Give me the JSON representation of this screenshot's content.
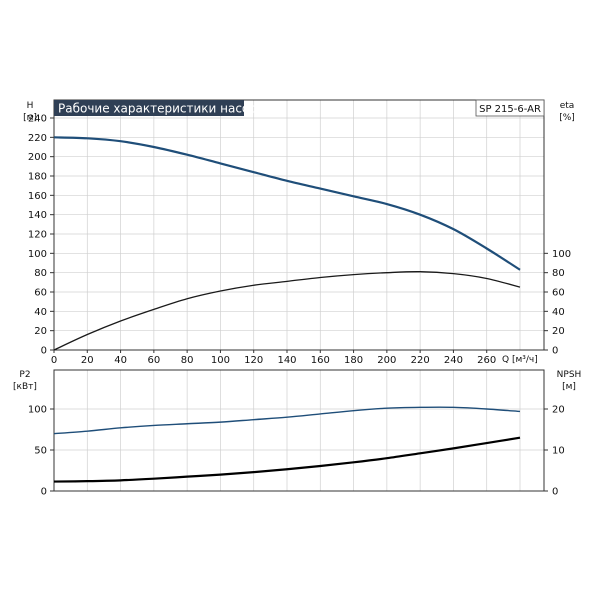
{
  "colors": {
    "head_curve": "#1f4e79",
    "eta_curve": "#1a1a1a",
    "p2_curve": "#1f4e79",
    "npsh_curve": "#000000",
    "title_bg": "#2f3f55",
    "title_fg": "#ffffff",
    "grid": "#d0d0d0",
    "axis": "#333333"
  },
  "chart_data": [
    {
      "type": "line",
      "title": "Рабочие характеристики насоса",
      "model_label": "SP 215-6-AR",
      "left_axis": {
        "label_top": "H",
        "label_unit": "[м]",
        "ticks": [
          0,
          20,
          40,
          60,
          80,
          100,
          120,
          140,
          160,
          180,
          200,
          220,
          240
        ],
        "ylim": [
          0,
          240
        ]
      },
      "right_axis": {
        "label_top": "eta",
        "label_unit": "[%]",
        "ticks": [
          0,
          20,
          40,
          60,
          80,
          100
        ],
        "ylim": [
          0,
          240
        ]
      },
      "x_axis": {
        "label": "Q [м³/ч]",
        "ticks": [
          0,
          20,
          40,
          60,
          80,
          100,
          120,
          140,
          160,
          180,
          200,
          220,
          240,
          260
        ],
        "xlim": [
          0,
          280
        ]
      },
      "grid": true,
      "series": [
        {
          "key": "H",
          "x": [
            0,
            20,
            40,
            60,
            80,
            100,
            120,
            140,
            160,
            180,
            200,
            220,
            240,
            260,
            280
          ],
          "values": [
            220,
            219,
            216,
            210,
            202,
            193,
            184,
            175,
            167,
            159,
            151,
            140,
            125,
            105,
            83
          ]
        },
        {
          "key": "eta",
          "x": [
            0,
            20,
            40,
            60,
            80,
            100,
            120,
            140,
            160,
            180,
            200,
            220,
            240,
            260,
            280
          ],
          "values": [
            0,
            16,
            30,
            42,
            53,
            61,
            67,
            71,
            75,
            78,
            80,
            81,
            79,
            74,
            65
          ]
        }
      ]
    },
    {
      "type": "line",
      "left_axis": {
        "label_top": "P2",
        "label_unit": "[кВт]",
        "ticks": [
          0,
          50,
          100
        ],
        "ylim": [
          0,
          150
        ]
      },
      "right_axis": {
        "label_top": "NPSH",
        "label_unit": "[м]",
        "ticks": [
          0,
          10,
          20
        ],
        "ylim": [
          0,
          30
        ]
      },
      "x_axis": {
        "xlim": [
          0,
          280
        ]
      },
      "grid": true,
      "series": [
        {
          "key": "P2",
          "axis": "left",
          "x": [
            0,
            20,
            40,
            60,
            80,
            100,
            120,
            140,
            160,
            180,
            200,
            220,
            240,
            260,
            280
          ],
          "values": [
            70,
            73,
            77,
            80,
            82,
            84,
            87,
            90,
            94,
            98,
            101,
            102,
            102,
            100,
            97
          ]
        },
        {
          "key": "NPSH",
          "axis": "right",
          "x": [
            0,
            20,
            40,
            60,
            80,
            100,
            120,
            140,
            160,
            180,
            200,
            220,
            240,
            260,
            280
          ],
          "values": [
            2.3,
            2.4,
            2.6,
            3.0,
            3.5,
            4.0,
            4.6,
            5.3,
            6.1,
            7.0,
            8.0,
            9.2,
            10.4,
            11.7,
            13.0
          ]
        }
      ]
    }
  ]
}
